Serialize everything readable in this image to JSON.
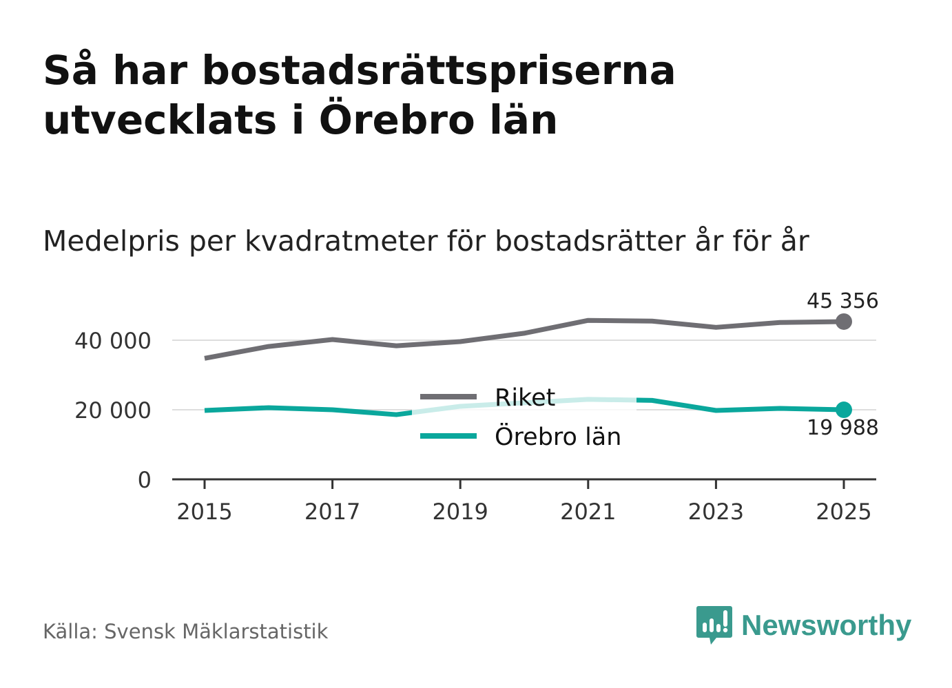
{
  "chart_data": {
    "type": "line",
    "title": "Så har bostadsrättspriserna utvecklats i Örebro län",
    "subtitle": "Medelpris per kvadratmeter för bostadsrätter år för år",
    "xlabel": "",
    "ylabel": "",
    "x": [
      2015,
      2016,
      2017,
      2018,
      2019,
      2020,
      2021,
      2022,
      2023,
      2024,
      2025
    ],
    "xticks": [
      "2015",
      "2017",
      "2019",
      "2021",
      "2023",
      "2025"
    ],
    "yticks": [
      "0",
      "20 000",
      "40 000"
    ],
    "ylim": [
      0,
      50000
    ],
    "grid": true,
    "legend": "center",
    "series": [
      {
        "name": "Riket",
        "color": "#6f6e73",
        "values": [
          34800,
          38200,
          40200,
          38400,
          39600,
          42000,
          45700,
          45500,
          43700,
          45100,
          45356
        ],
        "end_label": "45 356"
      },
      {
        "name": "Örebro län",
        "color": "#0aa79c",
        "values": [
          19800,
          20600,
          20000,
          18600,
          21000,
          22000,
          23000,
          22700,
          19800,
          20400,
          19988
        ],
        "end_label": "19 988"
      }
    ]
  },
  "source": "Källa: Svensk Mäklarstatistik",
  "logo": {
    "text": "Newsworthy",
    "color": "#3a9a8e"
  }
}
